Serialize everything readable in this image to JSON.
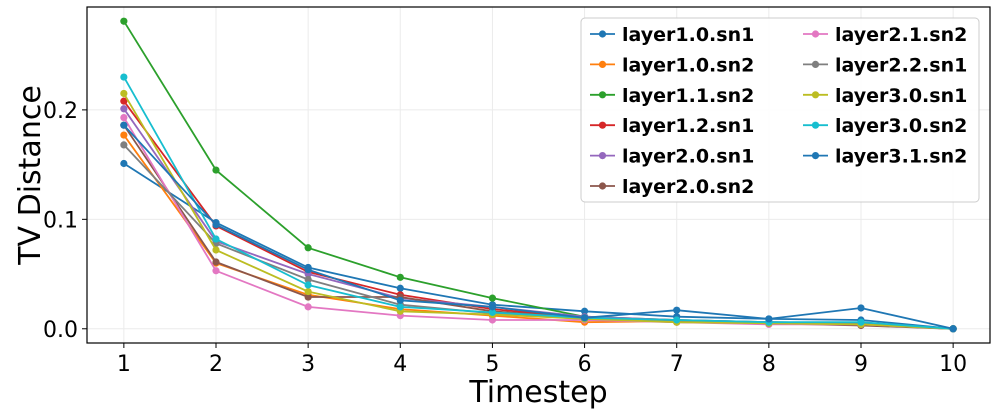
{
  "chart_data": {
    "type": "line",
    "title": "",
    "xlabel": "Timestep",
    "ylabel": "TV Distance",
    "x": [
      1,
      2,
      3,
      4,
      5,
      6,
      7,
      8,
      9,
      10
    ],
    "xticks": [
      "1",
      "2",
      "3",
      "4",
      "5",
      "6",
      "7",
      "8",
      "9",
      "10"
    ],
    "yticks": [
      0.0,
      0.1,
      0.2
    ],
    "ytick_labels": [
      "0.0",
      "0.1",
      "0.2"
    ],
    "xlim": [
      0.6,
      10.4
    ],
    "ylim": [
      -0.013,
      0.294
    ],
    "grid": true,
    "legend_position": "top-right",
    "legend_columns": 2,
    "series": [
      {
        "name": "layer1.0.sn1",
        "color": "#1f77b4",
        "values": [
          0.151,
          0.097,
          0.056,
          0.037,
          0.022,
          0.016,
          0.011,
          0.009,
          0.008,
          0.0
        ]
      },
      {
        "name": "layer1.0.sn2",
        "color": "#ff7f0e",
        "values": [
          0.177,
          0.06,
          0.031,
          0.018,
          0.012,
          0.006,
          0.007,
          0.005,
          0.004,
          0.0
        ]
      },
      {
        "name": "layer1.1.sn2",
        "color": "#2ca02c",
        "values": [
          0.281,
          0.145,
          0.074,
          0.047,
          0.028,
          0.011,
          0.008,
          0.006,
          0.005,
          0.0
        ]
      },
      {
        "name": "layer1.2.sn1",
        "color": "#d62728",
        "values": [
          0.208,
          0.094,
          0.052,
          0.031,
          0.018,
          0.01,
          0.007,
          0.006,
          0.004,
          0.0
        ]
      },
      {
        "name": "layer2.0.sn1",
        "color": "#9467bd",
        "values": [
          0.201,
          0.08,
          0.05,
          0.028,
          0.02,
          0.011,
          0.008,
          0.006,
          0.005,
          0.0
        ]
      },
      {
        "name": "layer2.0.sn2",
        "color": "#8c564b",
        "values": [
          0.186,
          0.061,
          0.029,
          0.029,
          0.016,
          0.01,
          0.006,
          0.005,
          0.003,
          0.0
        ]
      },
      {
        "name": "layer2.1.sn2",
        "color": "#e377c2",
        "values": [
          0.193,
          0.053,
          0.02,
          0.012,
          0.008,
          0.008,
          0.006,
          0.004,
          0.004,
          0.0
        ]
      },
      {
        "name": "layer2.2.sn1",
        "color": "#7f7f7f",
        "values": [
          0.168,
          0.078,
          0.045,
          0.022,
          0.014,
          0.009,
          0.007,
          0.005,
          0.005,
          0.0
        ]
      },
      {
        "name": "layer3.0.sn1",
        "color": "#bcbd22",
        "values": [
          0.215,
          0.072,
          0.034,
          0.016,
          0.013,
          0.009,
          0.006,
          0.005,
          0.004,
          0.0
        ]
      },
      {
        "name": "layer3.0.sn2",
        "color": "#17becf",
        "values": [
          0.23,
          0.082,
          0.04,
          0.02,
          0.015,
          0.01,
          0.008,
          0.006,
          0.006,
          0.0
        ]
      },
      {
        "name": "layer3.1.sn2",
        "color": "#1f77b4",
        "values": [
          0.186,
          0.095,
          0.054,
          0.026,
          0.02,
          0.01,
          0.017,
          0.009,
          0.019,
          0.0
        ]
      }
    ]
  }
}
